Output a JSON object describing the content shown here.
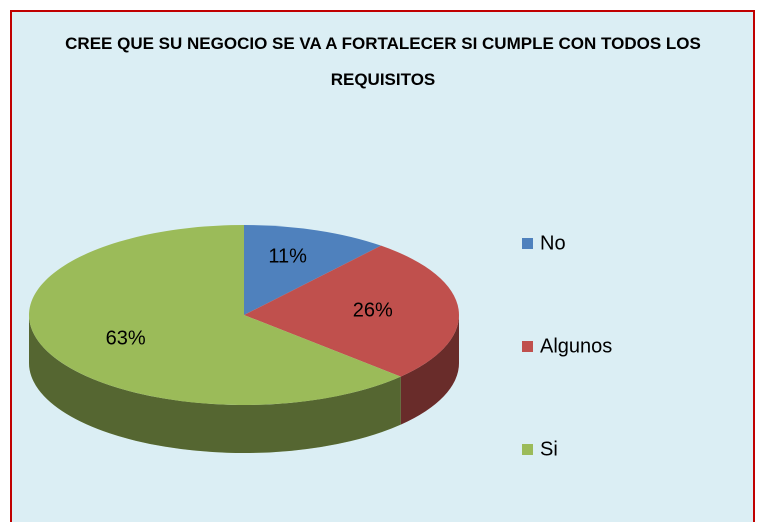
{
  "chart_data": {
    "type": "pie",
    "title": "CREE QUE SU NEGOCIO SE VA A FORTALECER SI CUMPLE CON TODOS LOS REQUISITOS",
    "categories": [
      "No",
      "Algunos",
      "Si"
    ],
    "values": [
      11,
      26,
      63
    ],
    "value_labels": [
      "11%",
      "26%",
      "63%"
    ],
    "colors": [
      "#4f81bd",
      "#c0504d",
      "#9bbb59"
    ],
    "legend": "right"
  }
}
